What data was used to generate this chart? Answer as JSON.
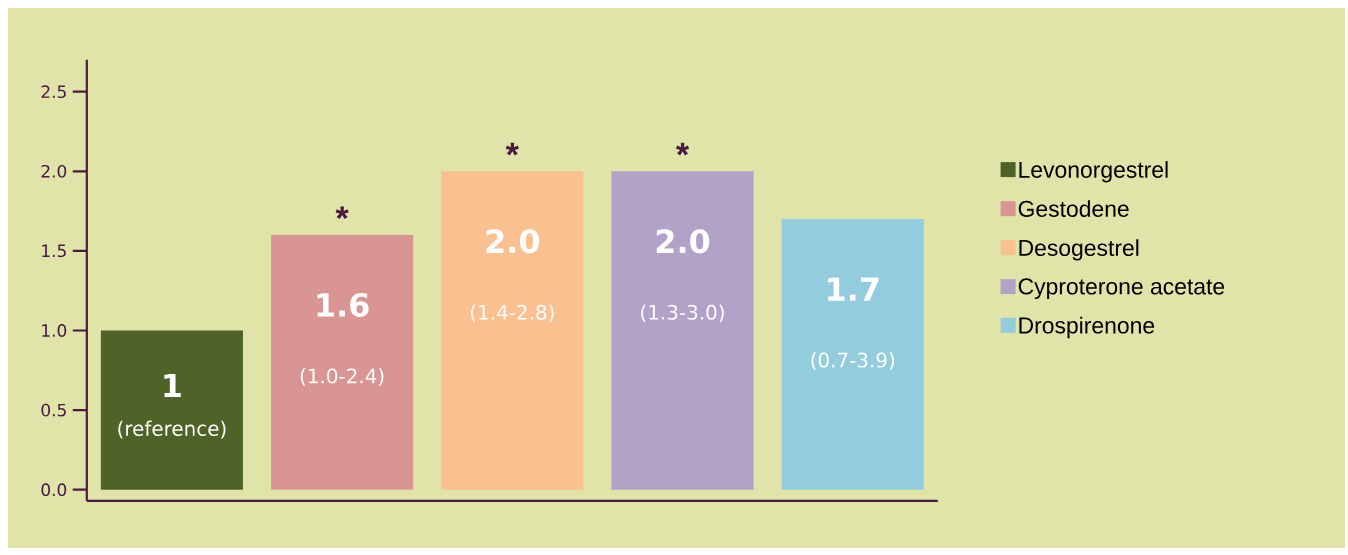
{
  "chart_data": {
    "type": "bar",
    "categories": [
      null,
      null,
      null,
      null,
      null
    ],
    "series": [
      {
        "name": "Levonorgestrel",
        "color": "#4f6228",
        "values": [
          1,
          null,
          null,
          null,
          null
        ],
        "value_labels": [
          "1",
          null,
          null,
          null,
          null
        ]
      },
      {
        "name": "Gestodene",
        "color": "#d99594",
        "values": [
          null,
          1.6,
          null,
          null,
          null
        ],
        "value_labels": [
          null,
          "1.6",
          null,
          null,
          null
        ]
      },
      {
        "name": "Desogestrel",
        "color": "#fac090",
        "values": [
          null,
          null,
          2.0,
          null,
          null
        ],
        "value_labels": [
          null,
          null,
          "2.0",
          null,
          null
        ]
      },
      {
        "name": "Cyproterone acetate",
        "color": "#b2a2c7",
        "values": [
          null,
          null,
          null,
          2.0,
          null
        ],
        "value_labels": [
          null,
          null,
          null,
          "2.0",
          null
        ]
      },
      {
        "name": "Drospirenone",
        "color": "#93cddd",
        "values": [
          null,
          null,
          null,
          null,
          1.7
        ],
        "value_labels": [
          null,
          null,
          null,
          null,
          "1.7"
        ]
      }
    ],
    "annotations": [
      "(reference)",
      "(1.0-2.4)",
      "(1.4-2.8)",
      "(1.3-3.0)",
      "(0.7-3.9)",
      "*",
      "*",
      "*"
    ],
    "ylim": [
      -0.07,
      2.7
    ],
    "yticks": [
      {
        "value": 0,
        "label": "0.0"
      },
      {
        "value": 0.5,
        "label": "0.5"
      },
      {
        "value": 1,
        "label": "1.0"
      },
      {
        "value": 1.5,
        "label": "1.5"
      },
      {
        "value": 2,
        "label": "2.0"
      },
      {
        "value": 2.5,
        "label": "2.5"
      }
    ],
    "legend": "right"
  }
}
